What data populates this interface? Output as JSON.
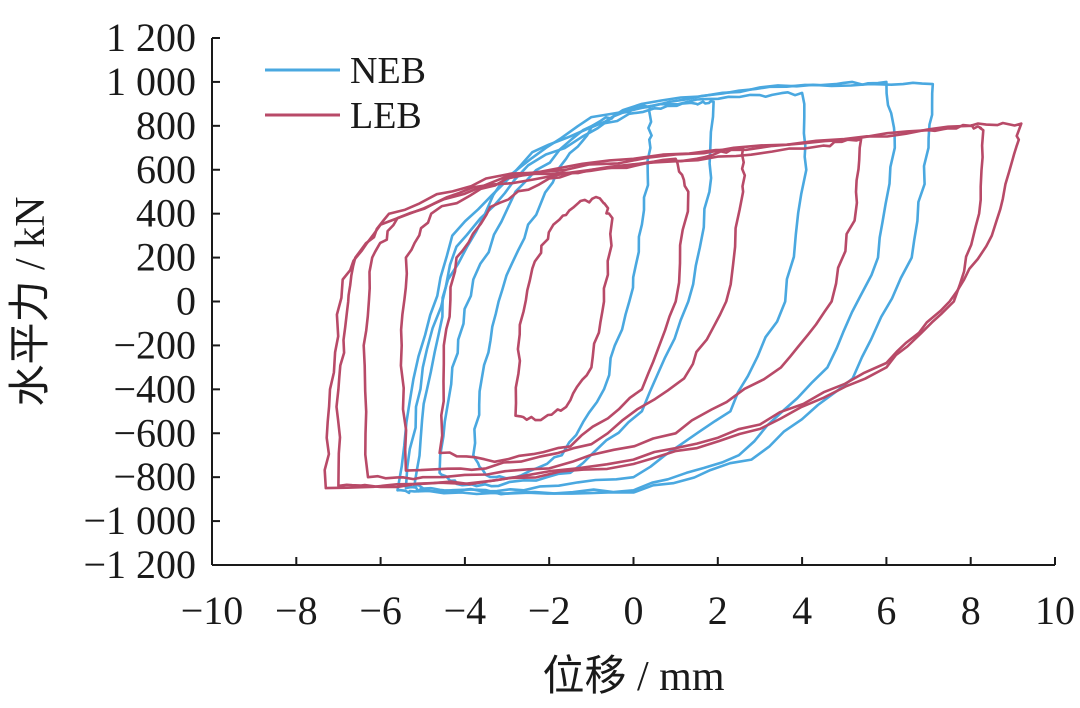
{
  "chart_data": {
    "type": "line",
    "title": "",
    "xlabel": "位移 / mm",
    "ylabel": "水平力 / kN",
    "xlim": [
      -10,
      10
    ],
    "ylim": [
      -1200,
      1200
    ],
    "x_ticks": [
      -10,
      -8,
      -6,
      -4,
      -2,
      0,
      2,
      4,
      6,
      8,
      10
    ],
    "x_tick_labels": [
      "−10",
      "−8",
      "−6",
      "−4",
      "−2",
      "0",
      "2",
      "4",
      "6",
      "8",
      "10"
    ],
    "y_ticks": [
      -1200,
      -1000,
      -800,
      -600,
      -400,
      -200,
      0,
      200,
      400,
      600,
      800,
      1000,
      1200
    ],
    "y_tick_labels": [
      "−1 200",
      "−1 000",
      "−800",
      "−600",
      "−400",
      "−200",
      "0",
      "200",
      "400",
      "600",
      "800",
      "1 000",
      "1 200"
    ],
    "grid": false,
    "legend_position": "top-left",
    "series": [
      {
        "name": "NEB",
        "color": "#4aa8e0",
        "loops": [
          {
            "points": [
              [
                -3.8,
                -700
              ],
              [
                -3.6,
                -350
              ],
              [
                -3.2,
                0
              ],
              [
                -2.5,
                350
              ],
              [
                -1.6,
                650
              ],
              [
                -0.8,
                820
              ],
              [
                0.0,
                880
              ],
              [
                0.4,
                890
              ],
              [
                0.4,
                700
              ],
              [
                0.2,
                350
              ],
              [
                -0.1,
                0
              ],
              [
                -0.7,
                -400
              ],
              [
                -1.7,
                -700
              ],
              [
                -2.8,
                -800
              ],
              [
                -3.5,
                -790
              ],
              [
                -3.8,
                -700
              ]
            ]
          },
          {
            "points": [
              [
                -4.6,
                -780
              ],
              [
                -4.3,
                -300
              ],
              [
                -3.8,
                100
              ],
              [
                -2.8,
                500
              ],
              [
                -1.2,
                780
              ],
              [
                0.5,
                880
              ],
              [
                1.5,
                900
              ],
              [
                1.9,
                910
              ],
              [
                1.8,
                500
              ],
              [
                1.3,
                0
              ],
              [
                0.2,
                -500
              ],
              [
                -1.5,
                -780
              ],
              [
                -3.2,
                -840
              ],
              [
                -4.2,
                -830
              ],
              [
                -4.6,
                -780
              ]
            ]
          },
          {
            "points": [
              [
                -5.2,
                -840
              ],
              [
                -4.9,
                -400
              ],
              [
                -4.4,
                100
              ],
              [
                -3.1,
                550
              ],
              [
                -1.0,
                840
              ],
              [
                1.5,
                920
              ],
              [
                3.0,
                940
              ],
              [
                4.0,
                950
              ],
              [
                4.1,
                600
              ],
              [
                3.6,
                0
              ],
              [
                2.3,
                -500
              ],
              [
                0.0,
                -800
              ],
              [
                -2.6,
                -860
              ],
              [
                -4.5,
                -860
              ],
              [
                -5.2,
                -840
              ]
            ]
          },
          {
            "points": [
              [
                -5.4,
                -850
              ],
              [
                -5.0,
                -300
              ],
              [
                -4.2,
                250
              ],
              [
                -2.5,
                620
              ],
              [
                0.0,
                880
              ],
              [
                2.5,
                960
              ],
              [
                4.8,
                990
              ],
              [
                6.0,
                1000
              ],
              [
                6.2,
                700
              ],
              [
                5.8,
                200
              ],
              [
                4.6,
                -300
              ],
              [
                2.5,
                -700
              ],
              [
                0.0,
                -860
              ],
              [
                -2.8,
                -870
              ],
              [
                -5.0,
                -860
              ],
              [
                -5.4,
                -850
              ]
            ]
          },
          {
            "points": [
              [
                -5.6,
                -860
              ],
              [
                -5.1,
                -250
              ],
              [
                -4.3,
                300
              ],
              [
                -2.4,
                680
              ],
              [
                0.2,
                900
              ],
              [
                3.0,
                975
              ],
              [
                5.6,
                990
              ],
              [
                7.1,
                990
              ],
              [
                7.0,
                700
              ],
              [
                6.6,
                200
              ],
              [
                5.2,
                -350
              ],
              [
                2.8,
                -720
              ],
              [
                0.0,
                -870
              ],
              [
                -3.0,
                -875
              ],
              [
                -5.2,
                -865
              ],
              [
                -5.6,
                -860
              ]
            ]
          }
        ]
      },
      {
        "name": "LEB",
        "color": "#b84a68",
        "loops": [
          {
            "points": [
              [
                -2.8,
                -520
              ],
              [
                -2.7,
                -150
              ],
              [
                -2.4,
                150
              ],
              [
                -1.9,
                350
              ],
              [
                -1.3,
                450
              ],
              [
                -0.8,
                470
              ],
              [
                -0.5,
                380
              ],
              [
                -0.7,
                0
              ],
              [
                -1.0,
                -300
              ],
              [
                -1.6,
                -480
              ],
              [
                -2.2,
                -540
              ],
              [
                -2.8,
                -520
              ]
            ]
          },
          {
            "points": [
              [
                -4.6,
                -690
              ],
              [
                -4.5,
                -200
              ],
              [
                -4.2,
                200
              ],
              [
                -3.4,
                430
              ],
              [
                -2.0,
                560
              ],
              [
                -0.5,
                610
              ],
              [
                1.0,
                650
              ],
              [
                1.3,
                500
              ],
              [
                1.0,
                0
              ],
              [
                0.2,
                -400
              ],
              [
                -1.5,
                -660
              ],
              [
                -3.3,
                -730
              ],
              [
                -4.6,
                -690
              ]
            ]
          },
          {
            "points": [
              [
                -5.4,
                -770
              ],
              [
                -5.5,
                -200
              ],
              [
                -5.4,
                200
              ],
              [
                -4.8,
                400
              ],
              [
                -3.0,
                560
              ],
              [
                -1.0,
                600
              ],
              [
                1.5,
                650
              ],
              [
                2.6,
                700
              ],
              [
                2.6,
                500
              ],
              [
                2.2,
                0
              ],
              [
                1.2,
                -350
              ],
              [
                -1.0,
                -650
              ],
              [
                -3.5,
                -760
              ],
              [
                -5.4,
                -770
              ]
            ]
          },
          {
            "points": [
              [
                -6.3,
                -800
              ],
              [
                -6.4,
                -200
              ],
              [
                -6.2,
                200
              ],
              [
                -5.6,
                380
              ],
              [
                -3.8,
                520
              ],
              [
                -1.0,
                600
              ],
              [
                2.0,
                660
              ],
              [
                4.5,
                710
              ],
              [
                5.4,
                740
              ],
              [
                5.3,
                450
              ],
              [
                4.7,
                0
              ],
              [
                3.5,
                -300
              ],
              [
                1.0,
                -600
              ],
              [
                -2.0,
                -760
              ],
              [
                -5.0,
                -800
              ],
              [
                -6.3,
                -800
              ]
            ]
          },
          {
            "points": [
              [
                -7.0,
                -840
              ],
              [
                -7.0,
                -400
              ],
              [
                -6.8,
                -50
              ],
              [
                -6.6,
                200
              ],
              [
                -5.8,
                400
              ],
              [
                -3.5,
                560
              ],
              [
                0.0,
                650
              ],
              [
                4.0,
                720
              ],
              [
                7.0,
                780
              ],
              [
                8.0,
                800
              ],
              [
                8.3,
                780
              ],
              [
                8.2,
                400
              ],
              [
                7.6,
                0
              ],
              [
                6.0,
                -300
              ],
              [
                3.0,
                -580
              ],
              [
                0.0,
                -740
              ],
              [
                -3.5,
                -820
              ],
              [
                -6.0,
                -845
              ],
              [
                -7.0,
                -840
              ]
            ]
          },
          {
            "points": [
              [
                -7.3,
                -850
              ],
              [
                -7.2,
                -400
              ],
              [
                -6.9,
                100
              ],
              [
                -6.0,
                350
              ],
              [
                -3.0,
                570
              ],
              [
                1.0,
                670
              ],
              [
                5.0,
                740
              ],
              [
                8.0,
                800
              ],
              [
                9.2,
                810
              ],
              [
                9.0,
                650
              ],
              [
                8.5,
                300
              ],
              [
                7.5,
                0
              ],
              [
                6.0,
                -280
              ],
              [
                3.0,
                -560
              ],
              [
                0.0,
                -720
              ],
              [
                -4.0,
                -830
              ],
              [
                -7.3,
                -850
              ]
            ]
          }
        ]
      }
    ]
  }
}
